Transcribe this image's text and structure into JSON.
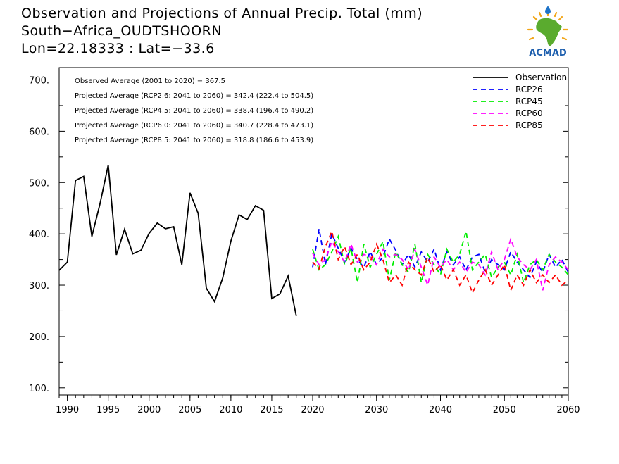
{
  "header": {
    "title": "Observation and Projections of Annual Precip. Total (mm)",
    "location": "South−Africa_OUDTSHOORN",
    "coords": "Lon=22.18333 : Lat=−33.6"
  },
  "logo": {
    "text": "ACMAD",
    "icon": "africa-logo-icon",
    "colors": {
      "land": "#5aab2e",
      "sun": "#f2a516",
      "drop": "#1e73c8",
      "text": "#1e5fae"
    }
  },
  "chart_data": {
    "type": "line",
    "title": "Observation and Projections of Annual Precip. Total (mm)",
    "xlim": [
      1989,
      2060
    ],
    "ylim": [
      86,
      724
    ],
    "y_ticks": [
      100,
      200,
      300,
      400,
      500,
      600,
      700
    ],
    "y_tick_labels": [
      "100.",
      "200.",
      "300.",
      "400.",
      "500.",
      "600.",
      "700."
    ],
    "x_ticks_major": [
      1990,
      1995,
      2000,
      2005,
      2010,
      2015,
      2020,
      2030,
      2040,
      2050,
      2060
    ],
    "x_tick_labels": [
      "1990",
      "1995",
      "2000",
      "2005",
      "2010",
      "2015",
      "2020",
      "2030",
      "2040",
      "2050",
      "2060"
    ],
    "grid": false,
    "legend_position": "top-right",
    "annotations": [
      "Observed Average (2001 to 2020) = 367.5",
      "Projected Average (RCP2.6: 2041 to 2060) = 342.4 (222.4 to 504.5)",
      "Projected Average (RCP4.5: 2041 to 2060) = 338.4 (196.4 to 490.2)",
      "Projected Average (RCP6.0: 2041 to 2060) = 340.7 (228.4 to 473.1)",
      "Projected Average (RCP8.5: 2041 to 2060) = 318.8 (186.6 to 453.9)"
    ],
    "observation": {
      "name": "Observation",
      "color": "#000000",
      "x": [
        1989,
        1990,
        1991,
        1992,
        1993,
        1994,
        1995,
        1996,
        1997,
        1998,
        1999,
        2000,
        2001,
        2002,
        2003,
        2004,
        2005,
        2006,
        2007,
        2008,
        2009,
        2010,
        2011,
        2012,
        2013,
        2014,
        2015,
        2016,
        2017,
        2018,
        2019,
        2020
      ],
      "y": [
        329,
        345,
        504,
        512,
        395,
        459,
        534,
        359,
        409,
        361,
        368,
        401,
        421,
        410,
        414,
        340,
        480,
        440,
        294,
        268,
        314,
        386,
        437,
        428,
        455,
        446,
        274,
        283,
        318,
        240,
        null,
        null
      ]
    },
    "series": [
      {
        "name": "RCP26",
        "color": "#0000ff",
        "x": [
          2020,
          2021,
          2022,
          2023,
          2024,
          2025,
          2026,
          2027,
          2028,
          2029,
          2030,
          2031,
          2032,
          2033,
          2034,
          2035,
          2036,
          2037,
          2038,
          2039,
          2040,
          2041,
          2042,
          2043,
          2044,
          2045,
          2046,
          2047,
          2048,
          2049,
          2050,
          2051,
          2052,
          2053,
          2054,
          2055,
          2056,
          2057,
          2058,
          2059,
          2060
        ],
        "y": [
          335,
          410,
          340,
          400,
          372,
          345,
          372,
          350,
          335,
          365,
          340,
          355,
          390,
          368,
          340,
          360,
          335,
          365,
          345,
          370,
          330,
          365,
          340,
          355,
          330,
          355,
          360,
          325,
          350,
          340,
          330,
          365,
          345,
          330,
          315,
          345,
          325,
          360,
          335,
          350,
          325
        ]
      },
      {
        "name": "RCP45",
        "color": "#00ee00",
        "x": [
          2020,
          2021,
          2022,
          2023,
          2024,
          2025,
          2026,
          2027,
          2028,
          2029,
          2030,
          2031,
          2032,
          2033,
          2034,
          2035,
          2036,
          2037,
          2038,
          2039,
          2040,
          2041,
          2042,
          2043,
          2044,
          2045,
          2046,
          2047,
          2048,
          2049,
          2050,
          2051,
          2052,
          2053,
          2054,
          2055,
          2056,
          2057,
          2058,
          2059,
          2060
        ],
        "y": [
          370,
          330,
          340,
          365,
          395,
          340,
          372,
          305,
          380,
          335,
          360,
          385,
          310,
          365,
          340,
          325,
          380,
          305,
          360,
          340,
          320,
          370,
          345,
          360,
          405,
          330,
          345,
          360,
          315,
          335,
          345,
          320,
          360,
          305,
          340,
          350,
          330,
          360,
          345,
          335,
          320
        ]
      },
      {
        "name": "RCP60",
        "color": "#ff00ff",
        "x": [
          2020,
          2021,
          2022,
          2023,
          2024,
          2025,
          2026,
          2027,
          2028,
          2029,
          2030,
          2031,
          2032,
          2033,
          2034,
          2035,
          2036,
          2037,
          2038,
          2039,
          2040,
          2041,
          2042,
          2043,
          2044,
          2045,
          2046,
          2047,
          2048,
          2049,
          2050,
          2051,
          2052,
          2053,
          2054,
          2055,
          2056,
          2057,
          2058,
          2059,
          2060
        ],
        "y": [
          362,
          340,
          350,
          385,
          365,
          345,
          380,
          345,
          360,
          355,
          340,
          370,
          355,
          360,
          350,
          330,
          370,
          335,
          300,
          355,
          335,
          350,
          330,
          345,
          325,
          345,
          340,
          320,
          365,
          330,
          350,
          390,
          355,
          340,
          330,
          350,
          290,
          340,
          355,
          345,
          330
        ]
      },
      {
        "name": "RCP85",
        "color": "#ff0000",
        "x": [
          2020,
          2021,
          2022,
          2023,
          2024,
          2025,
          2026,
          2027,
          2028,
          2029,
          2030,
          2031,
          2032,
          2033,
          2034,
          2035,
          2036,
          2037,
          2038,
          2039,
          2040,
          2041,
          2042,
          2043,
          2044,
          2045,
          2046,
          2047,
          2048,
          2049,
          2050,
          2051,
          2052,
          2053,
          2054,
          2055,
          2056,
          2057,
          2058,
          2059,
          2060
        ],
        "y": [
          345,
          332,
          375,
          405,
          350,
          375,
          340,
          360,
          330,
          345,
          380,
          350,
          305,
          320,
          300,
          345,
          330,
          320,
          355,
          325,
          340,
          310,
          330,
          300,
          320,
          285,
          310,
          330,
          300,
          320,
          340,
          290,
          320,
          300,
          330,
          305,
          320,
          305,
          320,
          300,
          310
        ]
      }
    ]
  }
}
